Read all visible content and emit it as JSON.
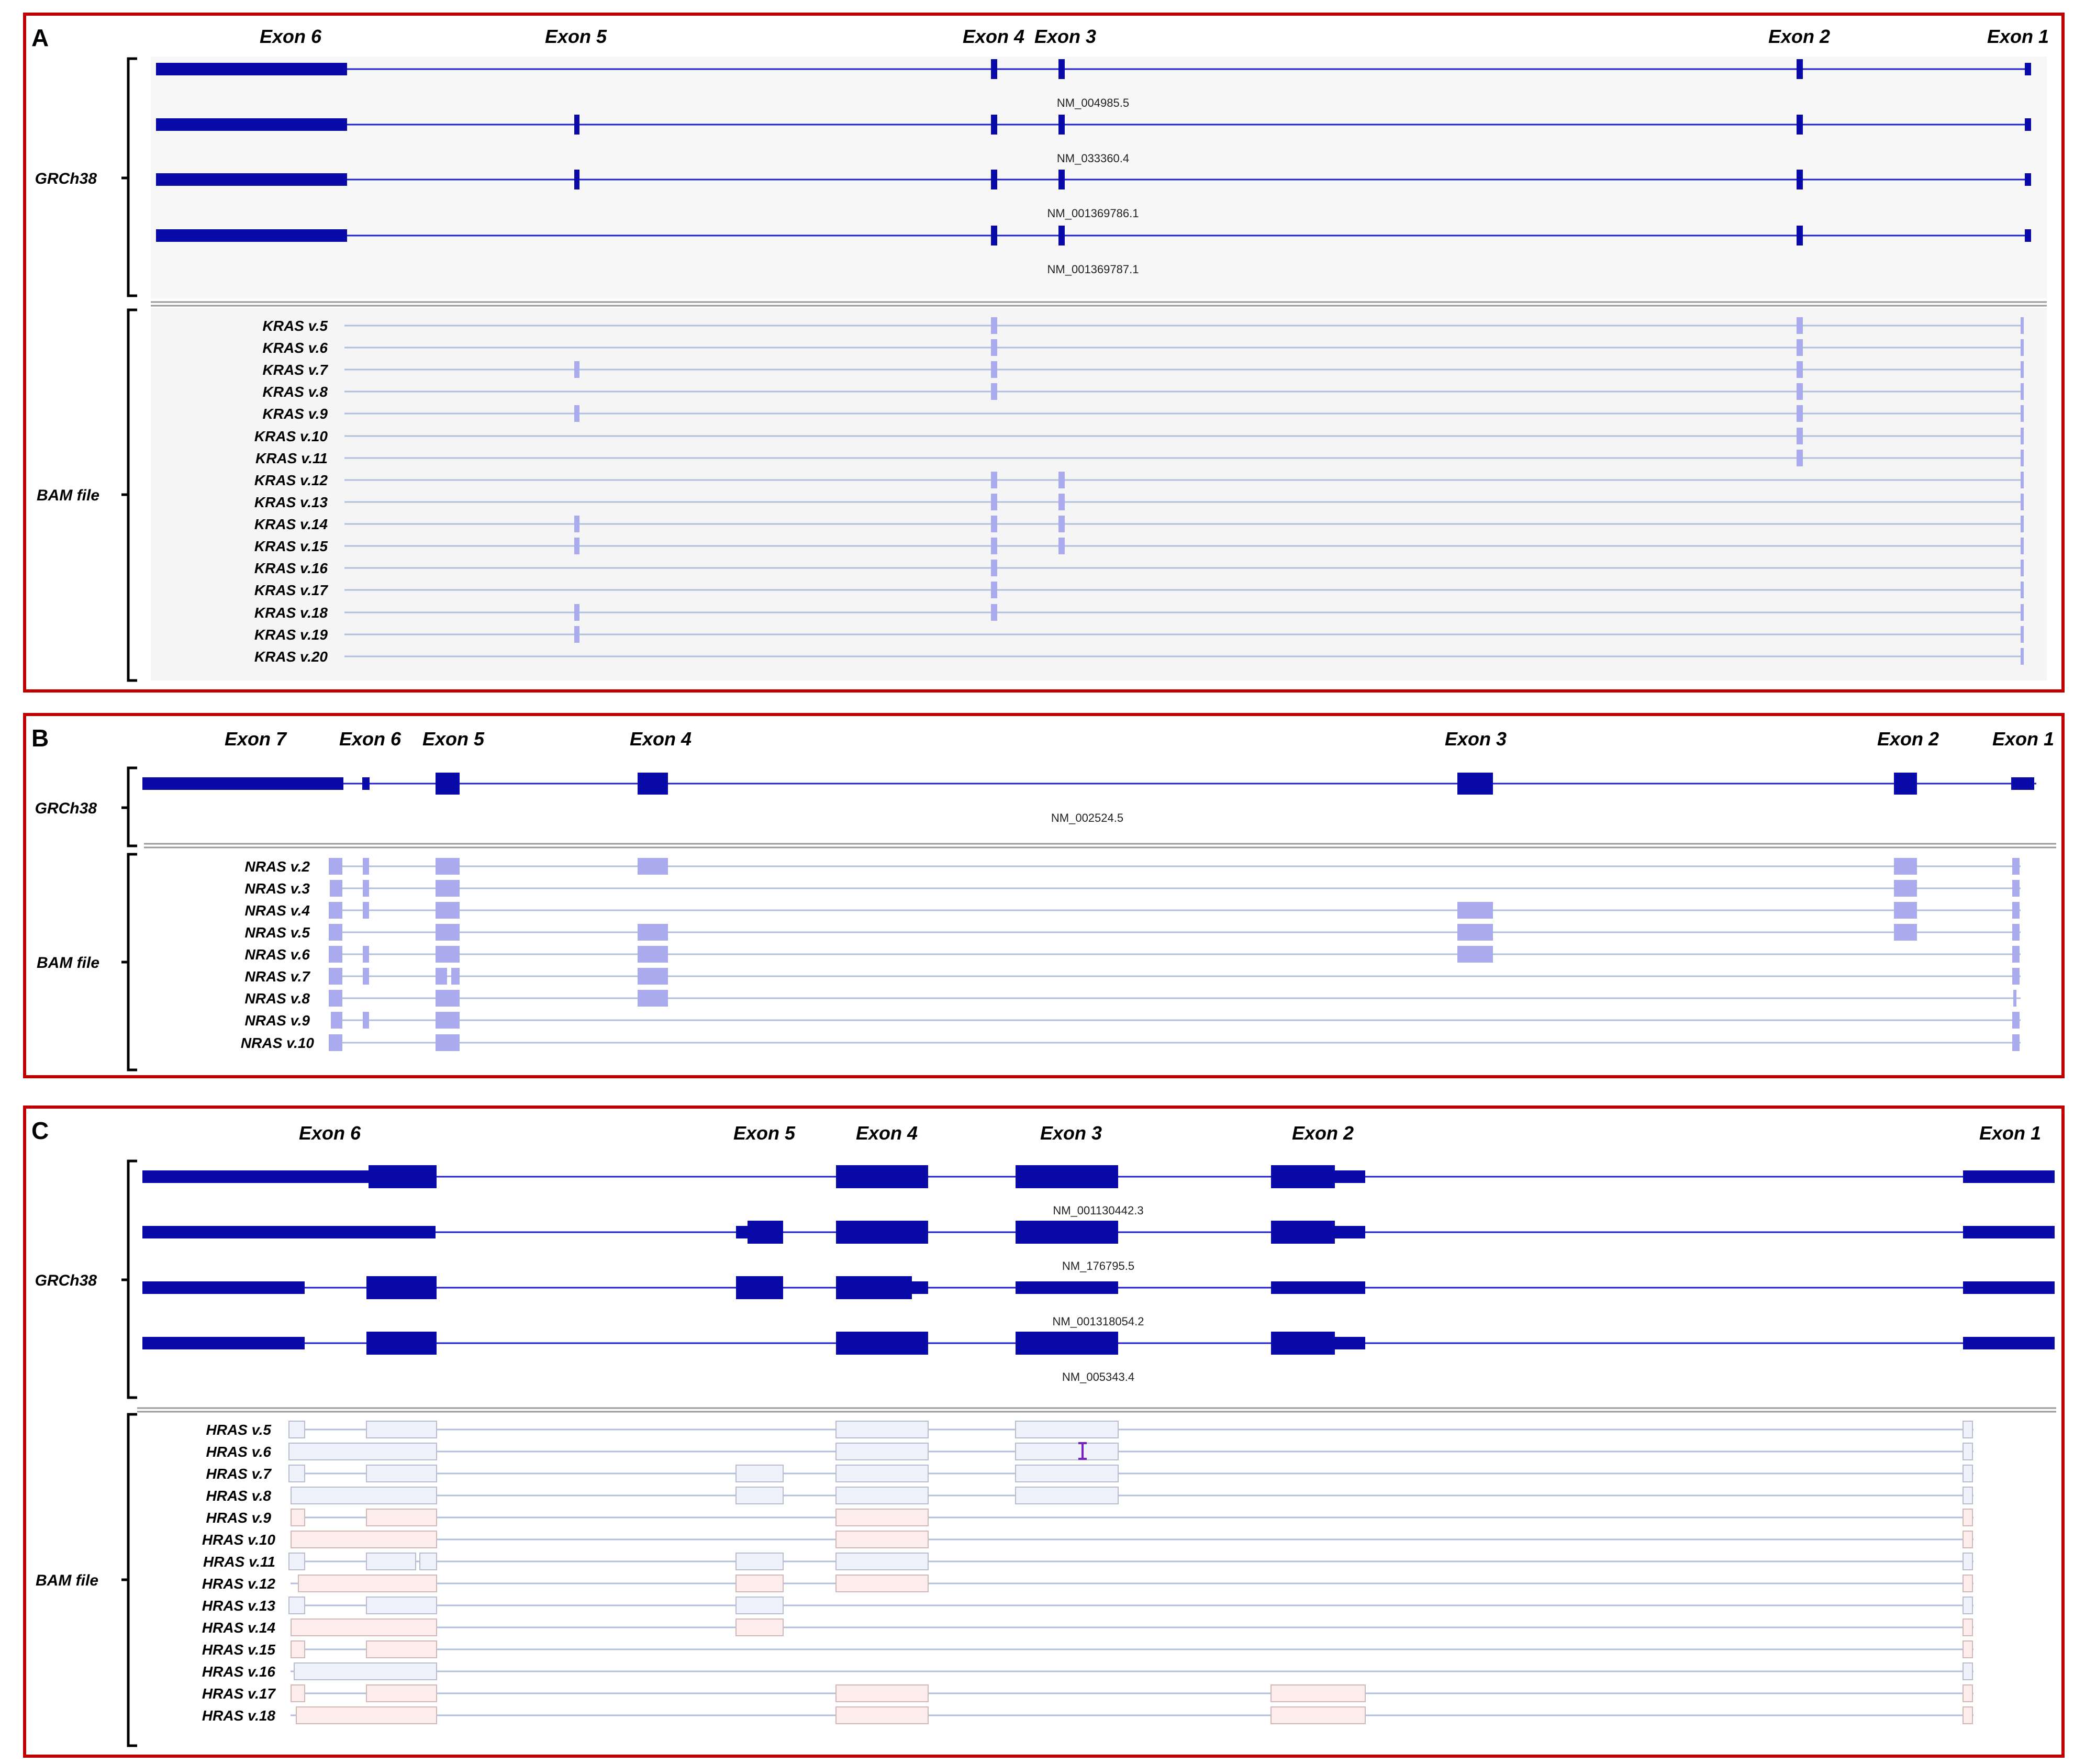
{
  "panels": [
    {
      "letter": "A",
      "exon_labels": [
        "Exon 6",
        "Exon 5",
        "Exon 4",
        "Exon 3",
        "Exon 2",
        "Exon 1"
      ],
      "reference_label": "GRCh38",
      "bam_label": "BAM file",
      "transcripts": [
        "NM_004985.5",
        "NM_033360.4",
        "NM_001369786.1",
        "NM_001369787.1"
      ],
      "variants": [
        "KRAS v.5",
        "KRAS v.6",
        "KRAS v.7",
        "KRAS v.8",
        "KRAS v.9",
        "KRAS v.10",
        "KRAS v.11",
        "KRAS v.12",
        "KRAS v.13",
        "KRAS v.14",
        "KRAS v.15",
        "KRAS v.16",
        "KRAS v.17",
        "KRAS v.18",
        "KRAS v.19",
        "KRAS v.20"
      ]
    },
    {
      "letter": "B",
      "exon_labels": [
        "Exon 7",
        "Exon 6",
        "Exon 5",
        "Exon 4",
        "Exon 3",
        "Exon 2",
        "Exon 1"
      ],
      "reference_label": "GRCh38",
      "bam_label": "BAM file",
      "transcripts": [
        "NM_002524.5"
      ],
      "variants": [
        "NRAS v.2",
        "NRAS v.3",
        "NRAS v.4",
        "NRAS v.5",
        "NRAS v.6",
        "NRAS v.7",
        "NRAS v.8",
        "NRAS v.9",
        "NRAS v.10"
      ]
    },
    {
      "letter": "C",
      "exon_labels": [
        "Exon 6",
        "Exon 5",
        "Exon 4",
        "Exon 3",
        "Exon 2",
        "Exon 1"
      ],
      "reference_label": "GRCh38",
      "bam_label": "BAM file",
      "transcripts": [
        "NM_001130442.3",
        "NM_176795.5",
        "NM_001318054.2",
        "NM_005343.4"
      ],
      "variants": [
        "HRAS v.5",
        "HRAS v.6",
        "HRAS v.7",
        "HRAS v.8",
        "HRAS v.9",
        "HRAS v.10",
        "HRAS v.11",
        "HRAS v.12",
        "HRAS v.13",
        "HRAS v.14",
        "HRAS v.15",
        "HRAS v.16",
        "HRAS v.17",
        "HRAS v.18"
      ]
    }
  ],
  "colors": {
    "frame": "#c00000",
    "reference_exon": "#0a0aa8",
    "reference_line": "#2020c8",
    "read_exon_kras_nras": "#aaaaee",
    "read_line": "#b0c0dc",
    "hras_blue_fill": "#eef0fa",
    "hras_pink_fill": "#fcecec",
    "separator": "#999999"
  }
}
